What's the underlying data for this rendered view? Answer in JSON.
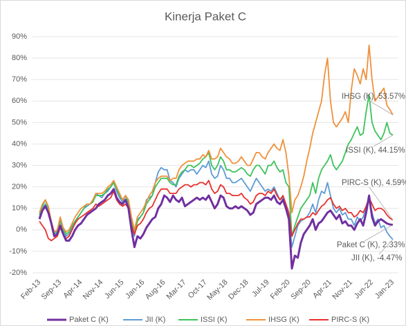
{
  "chart_data": {
    "type": "line",
    "title": "Kinerja Paket C",
    "categories": [
      "Feb-13",
      null,
      null,
      null,
      null,
      null,
      null,
      "Sep-13",
      null,
      null,
      null,
      null,
      null,
      null,
      "Apr-14",
      null,
      null,
      null,
      null,
      null,
      null,
      "Nov-14",
      null,
      null,
      null,
      null,
      null,
      null,
      "Jun-15",
      null,
      null,
      null,
      null,
      null,
      null,
      "Jan-16",
      null,
      null,
      null,
      null,
      null,
      null,
      "Aug-16",
      null,
      null,
      null,
      null,
      null,
      null,
      "Mar-17",
      null,
      null,
      null,
      null,
      null,
      null,
      "Oct-17",
      null,
      null,
      null,
      null,
      null,
      null,
      "May-18",
      null,
      null,
      null,
      null,
      null,
      null,
      "Dec-18",
      null,
      null,
      null,
      null,
      null,
      null,
      "Jul-19",
      null,
      null,
      null,
      null,
      null,
      null,
      "Feb-20",
      null,
      null,
      null,
      null,
      null,
      null,
      "Sep-20",
      null,
      null,
      null,
      null,
      null,
      null,
      "Apr-21",
      null,
      null,
      null,
      null,
      null,
      null,
      "Nov-21",
      null,
      null,
      null,
      null,
      null,
      null,
      "Jun-22",
      null,
      null,
      null,
      null,
      null,
      null,
      "Jan-23"
    ],
    "series": [
      {
        "name": "Paket C (K)",
        "color": "#7030a0",
        "end_label": "Paket C (K), 2.33%",
        "values": [
          5,
          9,
          11,
          8,
          3,
          -3,
          -2,
          2,
          -2,
          -5,
          -5,
          -3,
          0,
          2,
          3,
          5,
          7,
          8,
          9,
          10,
          12,
          13,
          14,
          16,
          17,
          19,
          15,
          13,
          12,
          14,
          10,
          0,
          -8,
          -3,
          -4,
          -2,
          1,
          3,
          5,
          6,
          10,
          12,
          16,
          15,
          13,
          16,
          14,
          13,
          15,
          11,
          12,
          13,
          14,
          15,
          14,
          15,
          14,
          16,
          13,
          10,
          12,
          16,
          15,
          11,
          10,
          10,
          11,
          10,
          11,
          10,
          9,
          7,
          8,
          12,
          13,
          14,
          15,
          15,
          14,
          16,
          13,
          12,
          14,
          10,
          5,
          -18,
          -12,
          -13,
          -6,
          -2,
          0,
          2,
          5,
          0,
          3,
          4,
          6,
          8,
          9,
          7,
          5,
          7,
          3,
          4,
          2,
          2,
          0,
          3,
          5,
          2,
          8,
          16,
          6,
          2,
          4,
          5,
          4,
          3,
          2.5,
          2.33
        ]
      },
      {
        "name": "JII (K)",
        "color": "#5b9bd5",
        "end_label": "JII (K), -4.47%",
        "values": [
          6,
          10,
          12,
          9,
          3,
          -1,
          -1,
          4,
          0,
          -3,
          -2,
          1,
          3,
          6,
          8,
          10,
          11,
          12,
          13,
          17,
          16,
          15,
          17,
          18,
          20,
          22,
          18,
          15,
          13,
          16,
          12,
          3,
          -3,
          5,
          6,
          8,
          14,
          15,
          16,
          22,
          27,
          29,
          28,
          28,
          23,
          22,
          20,
          24,
          26,
          28,
          27,
          28,
          28,
          26,
          28,
          30,
          29,
          32,
          26,
          24,
          25,
          30,
          28,
          24,
          24,
          22,
          22,
          23,
          24,
          22,
          20,
          18,
          21,
          24,
          22,
          20,
          18,
          19,
          18,
          20,
          17,
          14,
          15,
          10,
          6,
          -8,
          -3,
          2,
          4,
          5,
          6,
          8,
          12,
          8,
          14,
          18,
          17,
          22,
          16,
          10,
          8,
          10,
          7,
          8,
          5,
          5,
          2,
          6,
          4,
          6,
          10,
          15,
          8,
          3,
          5,
          1,
          2,
          -1,
          -3,
          -4.47
        ]
      },
      {
        "name": "ISSI (K)",
        "color": "#3cc25a",
        "end_label": "ISSI (K), 44.15%",
        "values": [
          7,
          11,
          14,
          10,
          3,
          -2,
          -1,
          5,
          0,
          -2,
          -1,
          2,
          4,
          6,
          8,
          10,
          12,
          12,
          13,
          16,
          16,
          16,
          17,
          19,
          20,
          22,
          19,
          16,
          14,
          16,
          12,
          4,
          -2,
          4,
          6,
          8,
          12,
          14,
          16,
          20,
          22,
          24,
          24,
          24,
          22,
          21,
          21,
          25,
          27,
          28,
          30,
          30,
          29,
          30,
          31,
          33,
          34,
          36,
          30,
          28,
          30,
          34,
          32,
          28,
          28,
          27,
          27,
          28,
          29,
          28,
          26,
          25,
          28,
          30,
          30,
          28,
          26,
          30,
          30,
          32,
          29,
          27,
          28,
          22,
          20,
          -3,
          2,
          6,
          10,
          12,
          14,
          16,
          22,
          17,
          24,
          28,
          30,
          32,
          35,
          30,
          28,
          30,
          32,
          36,
          40,
          42,
          45,
          48,
          44,
          45,
          55,
          63,
          50,
          46,
          44,
          42,
          45,
          50,
          45,
          44.15
        ]
      },
      {
        "name": "IHSG (K)",
        "color": "#f0903a",
        "end_label": "IHSG (K), 53.57%",
        "values": [
          8,
          12,
          14,
          11,
          4,
          -1,
          0,
          6,
          1,
          -1,
          0,
          3,
          6,
          8,
          10,
          11,
          12,
          12,
          14,
          17,
          17,
          17,
          18,
          20,
          21,
          23,
          20,
          17,
          14,
          16,
          14,
          6,
          0,
          6,
          8,
          10,
          13,
          16,
          18,
          22,
          24,
          25,
          25,
          25,
          23,
          24,
          24,
          28,
          30,
          31,
          32,
          32,
          32,
          33,
          33,
          35,
          34,
          37,
          33,
          33,
          34,
          38,
          36,
          34,
          33,
          31,
          31,
          32,
          34,
          32,
          30,
          30,
          33,
          36,
          36,
          34,
          33,
          36,
          38,
          40,
          38,
          37,
          42,
          36,
          25,
          8,
          14,
          16,
          20,
          25,
          32,
          38,
          45,
          50,
          55,
          60,
          72,
          80,
          60,
          50,
          48,
          50,
          52,
          55,
          50,
          65,
          75,
          72,
          68,
          75,
          70,
          86,
          70,
          60,
          62,
          64,
          66,
          58,
          56,
          53.57
        ]
      },
      {
        "name": "PIRC-S (K)",
        "color": "#e8302c",
        "end_label": "PIRC-S (K), 4.59%",
        "values": [
          4,
          2,
          0,
          -4,
          -5,
          -4,
          -3,
          1,
          -2,
          -4,
          -3,
          0,
          3,
          5,
          6,
          7,
          8,
          9,
          10,
          12,
          11,
          12,
          13,
          14,
          15,
          18,
          14,
          12,
          11,
          12,
          10,
          2,
          -2,
          2,
          3,
          5,
          8,
          10,
          11,
          14,
          17,
          19,
          19,
          19,
          17,
          17,
          17,
          19,
          20,
          21,
          21,
          20,
          21,
          21,
          22,
          22,
          21,
          23,
          19,
          17,
          18,
          21,
          20,
          17,
          17,
          16,
          16,
          16,
          17,
          15,
          14,
          12,
          13,
          16,
          17,
          17,
          16,
          18,
          17,
          19,
          16,
          14,
          16,
          12,
          8,
          -3,
          0,
          3,
          5,
          5,
          6,
          6,
          8,
          7,
          9,
          11,
          12,
          14,
          15,
          12,
          10,
          11,
          9,
          10,
          8,
          8,
          6,
          7,
          9,
          8,
          11,
          15,
          12,
          9,
          10,
          10,
          9,
          7,
          5.5,
          4.59
        ]
      }
    ],
    "ylim": [
      -20,
      90
    ],
    "yticks": [
      {
        "value": -20,
        "label": "-20%"
      },
      {
        "value": -10,
        "label": "-10%"
      },
      {
        "value": 0,
        "label": "0%"
      },
      {
        "value": 10,
        "label": "10%"
      },
      {
        "value": 20,
        "label": "20%"
      },
      {
        "value": 30,
        "label": "30%"
      },
      {
        "value": 40,
        "label": "40%"
      },
      {
        "value": 50,
        "label": "50%"
      },
      {
        "value": 60,
        "label": "60%"
      },
      {
        "value": 70,
        "label": "70%"
      },
      {
        "value": 80,
        "label": "80%"
      },
      {
        "value": 90,
        "label": "90%"
      }
    ],
    "grid": true,
    "legend": "bottom"
  }
}
